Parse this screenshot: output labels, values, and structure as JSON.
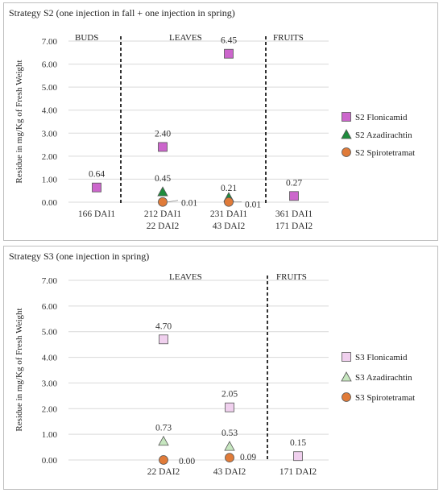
{
  "chart_data": [
    {
      "type": "scatter",
      "title": "Strategy S2 (one injection in fall + one injection in spring)",
      "ylabel": "Residue in mg/Kg of Fresh Weight",
      "ylim": [
        0,
        7
      ],
      "yticks": [
        "0.00",
        "1.00",
        "2.00",
        "3.00",
        "4.00",
        "5.00",
        "6.00",
        "7.00"
      ],
      "categories": [
        [
          "166 DAI1"
        ],
        [
          "212 DAI1",
          "22 DAI2"
        ],
        [
          "231 DAI1",
          "43 DAI2"
        ],
        [
          "361 DAI1",
          "171 DAI2"
        ]
      ],
      "sections": [
        "BUDS",
        "LEAVES",
        "FRUITS"
      ],
      "grid": true,
      "legend_position": "right",
      "series": [
        {
          "name": "S2 Flonicamid",
          "marker": "square",
          "color": "#cc66cc",
          "values": [
            0.64,
            2.4,
            6.45,
            0.27
          ],
          "labels": [
            "0.64",
            "2.40",
            "6.45",
            "0.27"
          ]
        },
        {
          "name": "S2 Azadirachtin",
          "marker": "triangle",
          "color": "#1e8c3c",
          "values": [
            null,
            0.45,
            0.21,
            null
          ],
          "labels": [
            "",
            "0.45",
            "0.21",
            ""
          ]
        },
        {
          "name": "S2 Spirotetramat",
          "marker": "circle",
          "color": "#e07b39",
          "values": [
            null,
            0.01,
            0.01,
            null
          ],
          "labels": [
            "",
            "0.01",
            "0.01",
            ""
          ]
        }
      ]
    },
    {
      "type": "scatter",
      "title": "Strategy S3 (one injection in spring)",
      "ylabel": "Residue in mg/Kg of Fresh Weight",
      "ylim": [
        0,
        7
      ],
      "yticks": [
        "0.00",
        "1.00",
        "2.00",
        "3.00",
        "4.00",
        "5.00",
        "6.00",
        "7.00"
      ],
      "categories": [
        [
          "22 DAI2"
        ],
        [
          "43 DAI2"
        ],
        [
          "171 DAI2"
        ]
      ],
      "sections": [
        "LEAVES",
        "FRUITS"
      ],
      "grid": true,
      "legend_position": "right",
      "series": [
        {
          "name": "S3 Flonicamid",
          "marker": "square",
          "color": "#f0d0ee",
          "values": [
            4.7,
            2.05,
            0.15
          ],
          "labels": [
            "4.70",
            "2.05",
            "0.15"
          ]
        },
        {
          "name": "S3 Azadirachtin",
          "marker": "triangle",
          "color": "#c6e6bf",
          "values": [
            0.73,
            0.53,
            null
          ],
          "labels": [
            "0.73",
            "0.53",
            ""
          ]
        },
        {
          "name": "S3 Spirotetramat",
          "marker": "circle",
          "color": "#e07b39",
          "values": [
            0.0,
            0.09,
            null
          ],
          "labels": [
            "0.00",
            "0.09",
            ""
          ]
        }
      ]
    }
  ]
}
